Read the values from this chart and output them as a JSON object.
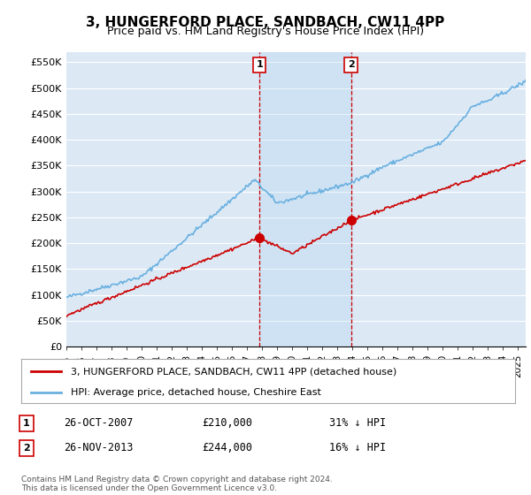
{
  "title": "3, HUNGERFORD PLACE, SANDBACH, CW11 4PP",
  "subtitle": "Price paid vs. HM Land Registry's House Price Index (HPI)",
  "ylabel_ticks": [
    "£0",
    "£50K",
    "£100K",
    "£150K",
    "£200K",
    "£250K",
    "£300K",
    "£350K",
    "£400K",
    "£450K",
    "£500K",
    "£550K"
  ],
  "ytick_values": [
    0,
    50000,
    100000,
    150000,
    200000,
    250000,
    300000,
    350000,
    400000,
    450000,
    500000,
    550000
  ],
  "ylim": [
    0,
    570000
  ],
  "xlim_start": 1995.0,
  "xlim_end": 2025.5,
  "plot_bg_color": "#dce9f5",
  "marker1_x": 2007.82,
  "marker1_y": 210000,
  "marker1_label": "1",
  "marker1_date": "26-OCT-2007",
  "marker1_price": "£210,000",
  "marker1_hpi": "31% ↓ HPI",
  "marker2_x": 2013.9,
  "marker2_y": 244000,
  "marker2_label": "2",
  "marker2_date": "26-NOV-2013",
  "marker2_price": "£244,000",
  "marker2_hpi": "16% ↓ HPI",
  "legend_line1": "3, HUNGERFORD PLACE, SANDBACH, CW11 4PP (detached house)",
  "legend_line2": "HPI: Average price, detached house, Cheshire East",
  "footer": "Contains HM Land Registry data © Crown copyright and database right 2024.\nThis data is licensed under the Open Government Licence v3.0.",
  "hpi_color": "#6ab0e0",
  "price_color": "#cc0000",
  "marker_color": "#cc0000",
  "dashed_line_color": "#cc0000"
}
